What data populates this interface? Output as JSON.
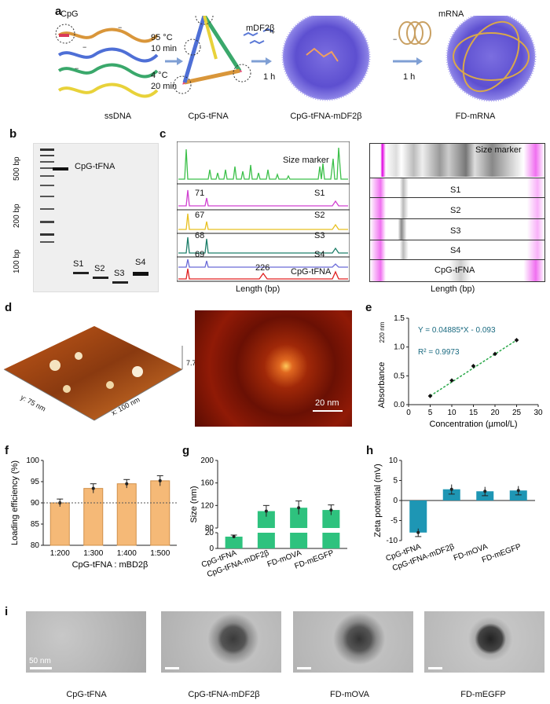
{
  "panels": {
    "a": "a",
    "b": "b",
    "c": "c",
    "d": "d",
    "e": "e",
    "f": "f",
    "g": "g",
    "h": "h",
    "i": "i"
  },
  "panel_a": {
    "cpg_label": "CpG",
    "step1_temp": "95 °C",
    "step1_time": "10 min",
    "step2_temp": "4 °C",
    "step2_time": "20 min",
    "mdf_label": "mDF2β",
    "mrna_label": "mRNA",
    "arrow1_time": "1 h",
    "arrow2_time": "1 h",
    "captions": [
      "ssDNA",
      "CpG-tFNA",
      "CpG-tFNA-mDF2β",
      "FD-mRNA"
    ],
    "charge_minus": "−",
    "charge_plus": "+"
  },
  "panel_b": {
    "ladder_marks": [
      "500 bp",
      "200 bp",
      "100 bp"
    ],
    "main_band": "CpG-tFNA",
    "lanes": [
      "S1",
      "S2",
      "S3",
      "S4"
    ]
  },
  "panel_c": {
    "marker": "Size marker",
    "traces": [
      "S1",
      "S2",
      "S3",
      "S4",
      "CpG-tFNA"
    ],
    "peak_values": [
      "71",
      "67",
      "68",
      "69",
      "226"
    ],
    "xlabel": "Length (bp)",
    "gel_marker": "Size marker",
    "gel_lanes": [
      "S1",
      "S2",
      "S3",
      "S4",
      "CpG-tFNA"
    ],
    "gel_xlabel": "Length (bp)"
  },
  "panel_d": {
    "z": "7.7 nm",
    "x": "x: 100 nm",
    "y": "y: 75 nm",
    "scale": "20 nm"
  },
  "panel_i": {
    "scale": "50 nm",
    "captions": [
      "CpG-tFNA",
      "CpG-tFNA-mDF2β",
      "FD-mOVA",
      "FD-mEGFP"
    ]
  },
  "chart_data": [
    {
      "id": "e",
      "type": "scatter",
      "title": "",
      "x": [
        5,
        10,
        15,
        20,
        25
      ],
      "y": [
        0.15,
        0.42,
        0.67,
        0.88,
        1.12
      ],
      "fit": "Y = 0.04885*X - 0.093",
      "r2": "R² = 0.9973",
      "r2_display": "R",
      "r2_rest": "=0.9973",
      "xlabel": "Concentration (µmol/L)",
      "ylabel": "Absorbance",
      "ylabel_sub": "220 nm",
      "xlim": [
        0,
        30
      ],
      "ylim": [
        0,
        1.5
      ],
      "xticks": [
        "0",
        "5",
        "10",
        "15",
        "20",
        "25",
        "30"
      ],
      "yticks": [
        "0.0",
        "0.5",
        "1.0",
        "1.5"
      ]
    },
    {
      "id": "f",
      "type": "bar",
      "categories": [
        "1:200",
        "1:300",
        "1:400",
        "1:500"
      ],
      "values": [
        90,
        93.4,
        94.5,
        95.2
      ],
      "errors": [
        0.9,
        1.1,
        1.0,
        1.2
      ],
      "ylabel": "Loading efficiency (%)",
      "xlabel": "CpG-tFNA : mBD2β",
      "ylim": [
        80,
        100
      ],
      "yticks": [
        "80",
        "85",
        "90",
        "95",
        "100"
      ],
      "refline": 90,
      "color": "#f5b977"
    },
    {
      "id": "g",
      "type": "bar",
      "categories": [
        "CpG-tFNA",
        "CpG-tFNA-mDF2β",
        "FD-mOVA",
        "FD-mEGFP"
      ],
      "values": [
        15,
        110,
        116,
        112
      ],
      "errors": [
        2,
        10,
        12,
        9
      ],
      "ylabel": "Size (nm)",
      "yticks": [
        "0",
        "20",
        "80",
        "120",
        "160",
        "200"
      ],
      "ylim": [
        0,
        200
      ],
      "axis_break": [
        20,
        80
      ],
      "color": "#2ec27e"
    },
    {
      "id": "h",
      "type": "bar",
      "categories": [
        "CpG-tFNA",
        "CpG-tFNA-mDF2β",
        "FD-mOVA",
        "FD-mEGFP"
      ],
      "values": [
        -8,
        2.8,
        2.3,
        2.5
      ],
      "errors": [
        1.0,
        1.2,
        1.1,
        1.1
      ],
      "ylabel": "Zeta potential (mV)",
      "yticks": [
        "10",
        "5",
        "0",
        "-5",
        "-10"
      ],
      "ylim": [
        -10,
        10
      ],
      "color": "#1e96b4"
    }
  ]
}
